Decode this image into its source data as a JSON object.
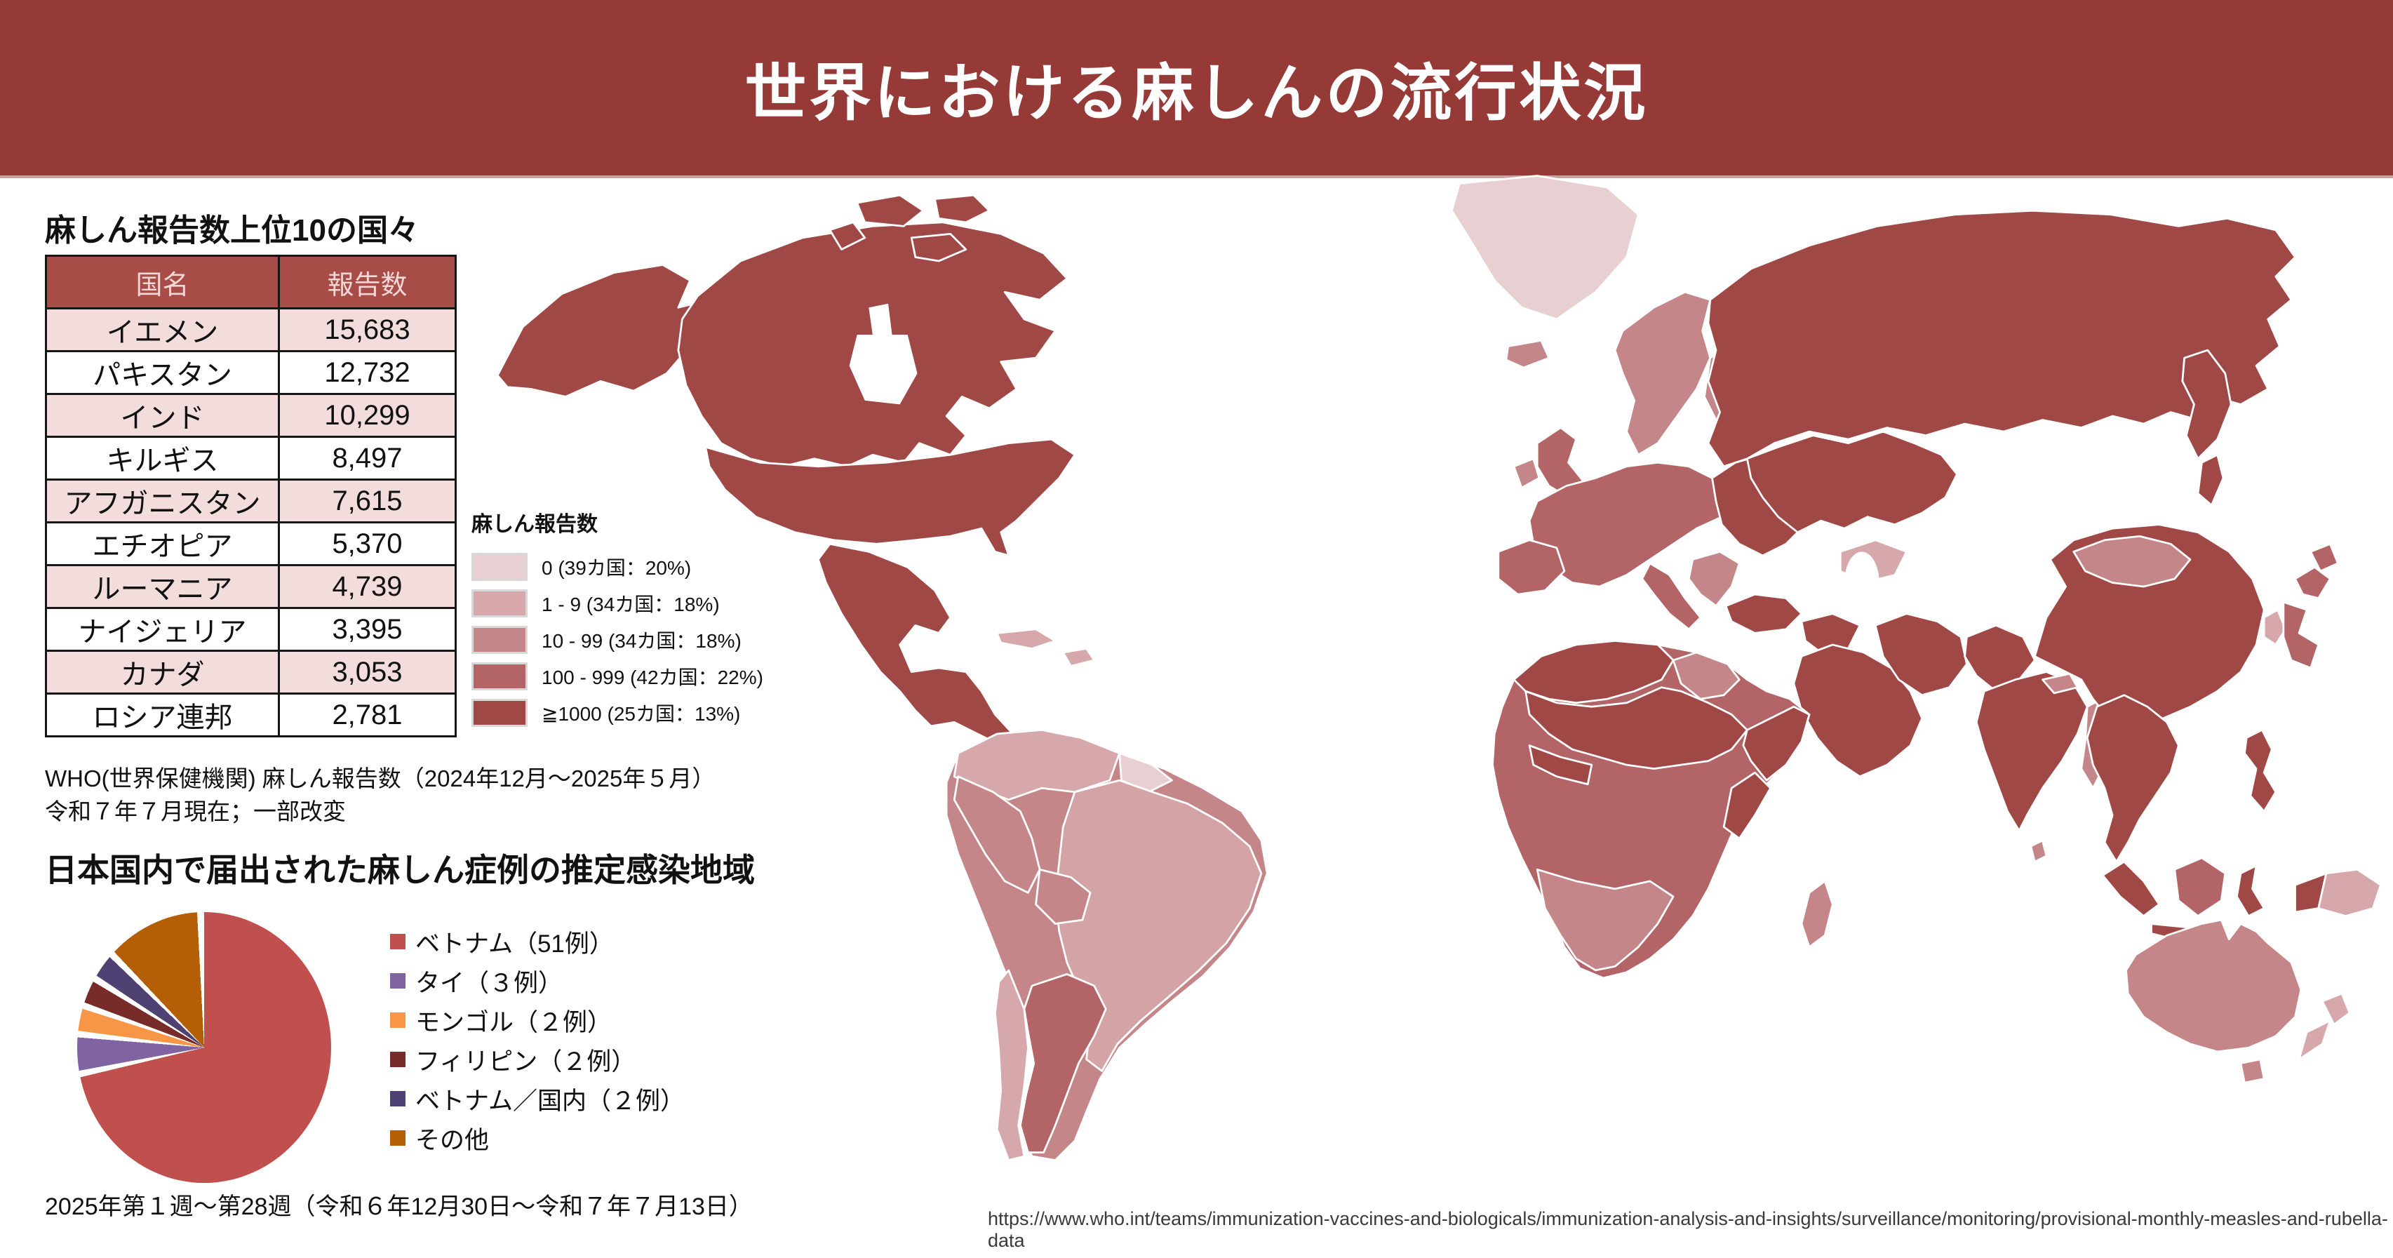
{
  "header": {
    "title": "世界における麻しんの流行状況",
    "bg_color": "#953a37",
    "text_color": "#ffffff"
  },
  "top_countries": {
    "title": "麻しん報告数上位10の国々",
    "columns": [
      "国名",
      "報告数"
    ],
    "rows": [
      [
        "イエメン",
        "15,683"
      ],
      [
        "パキスタン",
        "12,732"
      ],
      [
        "インド",
        "10,299"
      ],
      [
        "キルギス",
        "8,497"
      ],
      [
        "アフガニスタン",
        "7,615"
      ],
      [
        "エチオピア",
        "5,370"
      ],
      [
        "ルーマニア",
        "4,739"
      ],
      [
        "ナイジェリア",
        "3,395"
      ],
      [
        "カナダ",
        "3,053"
      ],
      [
        "ロシア連邦",
        "2,781"
      ]
    ],
    "header_bg": "#a74c46",
    "row_alt_bg": "#f2dcdc"
  },
  "map": {
    "legend_title": "麻しん報告数",
    "legend": [
      {
        "label": "0 (39カ国：20%)",
        "color": "#e8cfd1"
      },
      {
        "label": "1 - 9 (34カ国：18%)",
        "color": "#d6a8ab"
      },
      {
        "label": "10 - 99 (34カ国：18%)",
        "color": "#c48688"
      },
      {
        "label": "100 - 999 (42カ国：22%)",
        "color": "#b26467"
      },
      {
        "label": "≧1000 (25カ国：13%)",
        "color": "#9f4846"
      }
    ]
  },
  "who_note": {
    "line1": "WHO(世界保健機関) 麻しん報告数（2024年12月～2025年５月）",
    "line2": "令和７年７月現在；一部改変"
  },
  "pie_section": {
    "title": "日本国内で届出された麻しん症例の推定感染地域",
    "legend": [
      {
        "label": "ベトナム（51例）",
        "color": "#c0504d"
      },
      {
        "label": "タイ（３例）",
        "color": "#8064a2"
      },
      {
        "label": "モンゴル（２例）",
        "color": "#f79646"
      },
      {
        "label": "フィリピン（２例）",
        "color": "#772c2a"
      },
      {
        "label": "ベトナム／国内（２例）",
        "color": "#4f4272"
      },
      {
        "label": "その他",
        "color": "#b45f06"
      }
    ],
    "footnote": "2025年第１週～第28週（令和６年12月30日～令和７年７月13日）"
  },
  "footer": {
    "url": "https://www.who.int/teams/immunization-vaccines-and-biologicals/immunization-analysis-and-insights/surveillance/monitoring/provisional-monthly-measles-and-rubella-data"
  },
  "chart_data": [
    {
      "type": "table",
      "title": "麻しん報告数上位10の国々",
      "columns": [
        "国名",
        "報告数"
      ],
      "rows": [
        [
          "イエメン",
          15683
        ],
        [
          "パキスタン",
          12732
        ],
        [
          "インド",
          10299
        ],
        [
          "キルギス",
          8497
        ],
        [
          "アフガニスタン",
          7615
        ],
        [
          "エチオピア",
          5370
        ],
        [
          "ルーマニア",
          4739
        ],
        [
          "ナイジェリア",
          3395
        ],
        [
          "カナダ",
          3053
        ],
        [
          "ロシア連邦",
          2781
        ]
      ]
    },
    {
      "type": "pie",
      "title": "日本国内で届出された麻しん症例の推定感染地域",
      "labels": [
        "ベトナム",
        "タイ",
        "モンゴル",
        "フィリピン",
        "ベトナム／国内",
        "その他"
      ],
      "values": [
        51,
        3,
        2,
        2,
        2,
        8
      ],
      "values_shown_in_legend": [
        51,
        3,
        2,
        2,
        2,
        null
      ],
      "other_value_estimated_from_angle": true,
      "colors": [
        "#c0504d",
        "#8064a2",
        "#f79646",
        "#772c2a",
        "#4f4272",
        "#b45f06"
      ],
      "start_angle_deg": 0,
      "direction": "clockwise",
      "slice_gap_color": "#ffffff",
      "legend_position": "right"
    },
    {
      "type": "heatmap",
      "subtype": "world-choropleth",
      "title": "麻しん報告数",
      "classes": [
        {
          "range": "0",
          "countries": 39,
          "percent": 20,
          "color": "#e8cfd1"
        },
        {
          "range": "1 - 9",
          "countries": 34,
          "percent": 18,
          "color": "#d6a8ab"
        },
        {
          "range": "10 - 99",
          "countries": 34,
          "percent": 18,
          "color": "#c48688"
        },
        {
          "range": "100 - 999",
          "countries": 42,
          "percent": 22,
          "color": "#b26467"
        },
        {
          "range": "≧1000",
          "countries": 25,
          "percent": 13,
          "color": "#9f4846"
        }
      ]
    }
  ]
}
